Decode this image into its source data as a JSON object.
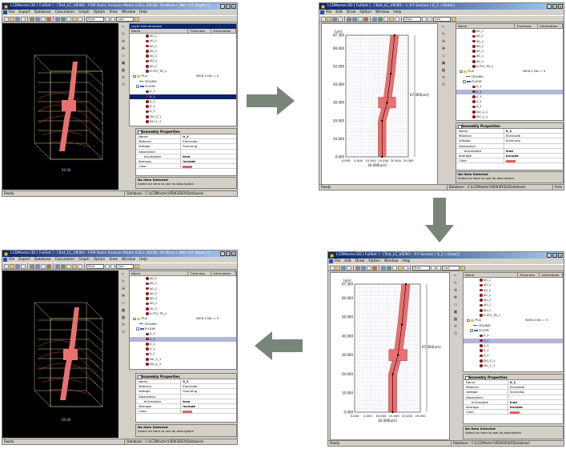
{
  "windows": [
    {
      "title": "LCDMaster/3D  [ FullSet ] - [Test_LC_VIEW3 - FEM Static Analysis Model (CELL 3D/3D: 20.00um ( 386 ) 67.30um ) ]",
      "view": "3d",
      "viewport_caption": "20.00",
      "status_left": "Ready",
      "status_database": "Database : C:\\LCDMaster\\VIEW3D\\EX\\Database\\",
      "status_area": ""
    },
    {
      "title": "LCDMaster/3D  [ FullSet ] - [Test_LC_VIEW3 - < X-Y Section ( 0_1 ) (Gate)]",
      "view": "2d",
      "status_left": "Ready",
      "status_database": "Database : C:\\LCDMaster\\VIEW3D\\EX\\Database\\",
      "status_area": "Area"
    },
    {
      "title": "LCDMaster/3D  [ FullSet ] - [Test_LC_VIEW3 - X-Y Section ( 0_1 ) (Gate)]",
      "view": "2d",
      "status_left": "Ready",
      "status_database": "Database : C:\\LCDMaster\\VIEW3D\\EX\\Database\\",
      "status_area": ""
    },
    {
      "title": "LCDMaster/3D  [ FullSet ] - [Test_LC_VIEW3 - FEM Static Analysis Model (CELL 3D/3D: 20.00um ( 386 ) 67.30um ) ]",
      "view": "3d",
      "viewport_caption": "20.00",
      "status_left": "Ready",
      "status_database": "Database : C:\\LCDMaster\\VIEW3D\\EX\\Database\\",
      "status_area": ""
    }
  ],
  "menus": {
    "full": [
      "File",
      "Export",
      "Database",
      "Calculation",
      "Graph",
      "Option",
      "View",
      "Window",
      "Help"
    ],
    "section": [
      "File",
      "Edit",
      "Draw",
      "Option",
      "Window",
      "Help"
    ]
  },
  "toolbar": {
    "combo_value": "Start",
    "combo_value_2": "Last"
  },
  "layer_panel": {
    "title": "Layer tree structure",
    "columns": [
      "Name",
      "Thickness",
      "Information"
    ],
    "items_top": [
      "40_1",
      "40_1",
      "40_1",
      "40_1",
      "40_1",
      "40_1",
      "40_1",
      "0-ITO_TS_1"
    ],
    "pi_label": "PI-A",
    "pi_thickness": "3000.2 Div = 5",
    "ceiling": "CEILING",
    "floor": "FLOOR",
    "items_bottom": [
      "0_1",
      "0_1",
      "0_1",
      "0_1",
      "0_1",
      "0_1",
      "DU_2_1",
      "DU_1_1"
    ]
  },
  "properties": {
    "title": "Assembly Properties",
    "rows": [
      {
        "key": "Name",
        "value": "0_1",
        "bold": true
      },
      {
        "key": "Material",
        "value": "Electrode",
        "bold": false
      },
      {
        "key": "Voltage",
        "value": "Scanning",
        "bold": false
      },
      {
        "key": "Absorption",
        "value": "",
        "bold": false
      },
      {
        "key": "bComplete",
        "value": "true",
        "bold": true
      },
      {
        "key": "Average",
        "value": "include",
        "bold": true
      },
      {
        "key": "Color",
        "value": "",
        "bold": false
      }
    ]
  },
  "description": {
    "title": "No Item Selected",
    "text": "Select an item to see its description"
  },
  "chart_data": {
    "type": "line",
    "ylabel": "[um]",
    "y_ticks": [
      "0.000",
      "10.000",
      "20.000",
      "30.000",
      "40.000",
      "50.000",
      "60.000",
      "67.300"
    ],
    "x_ticks": [
      "0.000",
      "5.000",
      "10.000",
      "15.000",
      "20.000",
      "25.000"
    ],
    "x_ticks_label_b": [
      "20.000"
    ],
    "xlabel": "20.000[um]",
    "side_label": "67.300[um]",
    "series": [
      {
        "values": [
          [
            14.5,
            0
          ],
          [
            14.5,
            20
          ],
          [
            16.5,
            30
          ],
          [
            18,
            46
          ],
          [
            19.5,
            67.3
          ]
        ]
      }
    ]
  },
  "arrows": [
    "right",
    "down",
    "left"
  ],
  "colors": {
    "title_start": "#0a246a",
    "title_end": "#a6caf0",
    "electrode": "#e87070",
    "mesh": "#c8c080",
    "node": "#8a1b1b"
  }
}
